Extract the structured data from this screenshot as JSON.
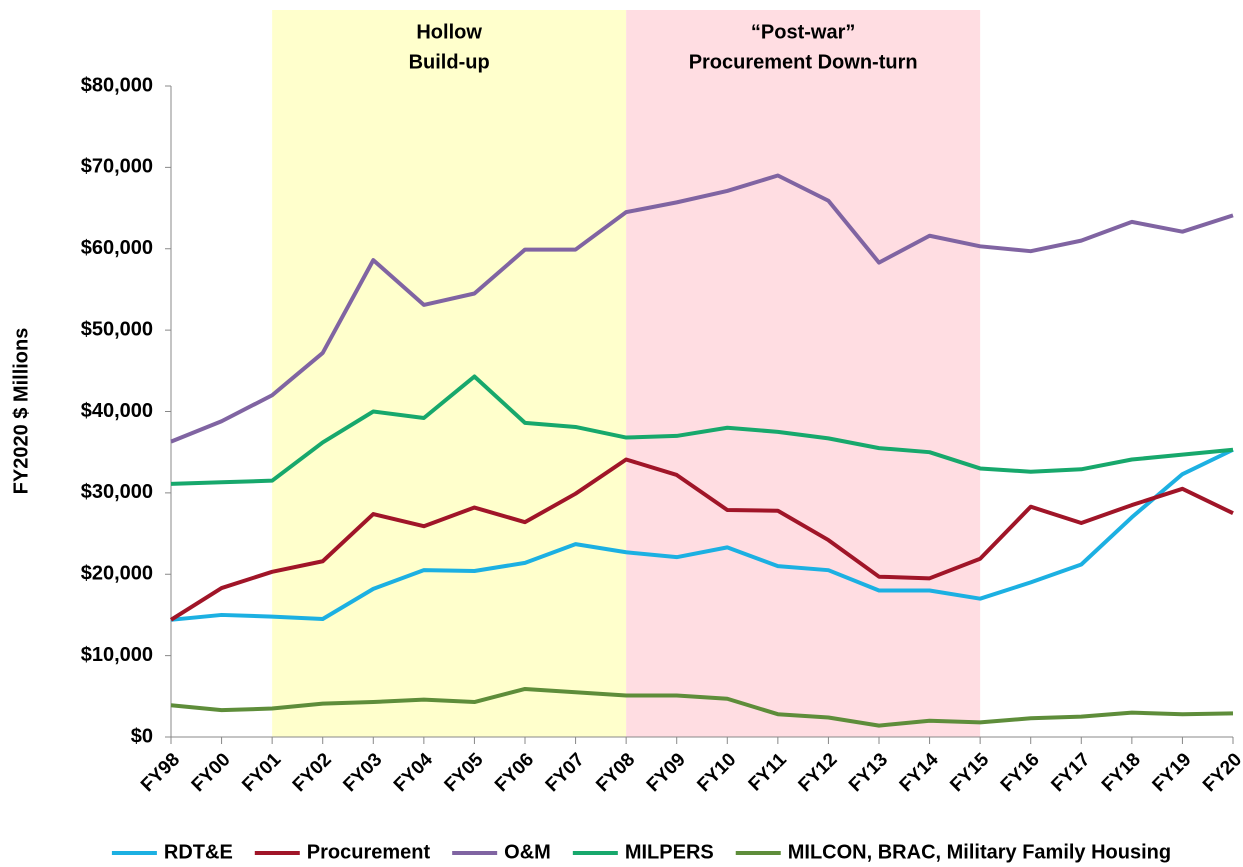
{
  "chart_data": {
    "type": "line",
    "y_label": "FY2020 $ Millions",
    "categories": [
      "FY98",
      "FY00",
      "FY01",
      "FY02",
      "FY03",
      "FY04",
      "FY05",
      "FY06",
      "FY07",
      "FY08",
      "FY09",
      "FY10",
      "FY11",
      "FY12",
      "FY13",
      "FY14",
      "FY15",
      "FY16",
      "FY17",
      "FY18",
      "FY19",
      "FY20"
    ],
    "series": [
      {
        "name": "RDT&E",
        "color": "#1cb0e2",
        "values": [
          14400,
          15000,
          14800,
          14500,
          18200,
          20500,
          20400,
          21400,
          23700,
          22700,
          22100,
          23300,
          21000,
          20500,
          18000,
          18000,
          17000,
          19000,
          21200,
          27000,
          32300,
          35300
        ]
      },
      {
        "name": "Procurement",
        "color": "#a01528",
        "values": [
          14400,
          18300,
          20300,
          21600,
          27400,
          25900,
          28200,
          26400,
          29900,
          34100,
          32200,
          27900,
          27800,
          24200,
          19700,
          19500,
          21900,
          28300,
          26300,
          28500,
          30500,
          27500
        ]
      },
      {
        "name": "O&M",
        "color": "#8064a2",
        "values": [
          36300,
          38800,
          42000,
          47200,
          58600,
          53100,
          54500,
          59900,
          59900,
          64500,
          65700,
          67100,
          69000,
          65900,
          58300,
          61600,
          60300,
          59700,
          61000,
          63300,
          62100,
          64100
        ]
      },
      {
        "name": "MILPERS",
        "color": "#17a86c",
        "values": [
          31100,
          31300,
          31500,
          36200,
          40000,
          39200,
          44300,
          38600,
          38100,
          36800,
          37000,
          38000,
          37500,
          36700,
          35500,
          35000,
          33000,
          32600,
          32900,
          34100,
          34700,
          35300
        ]
      },
      {
        "name": "MILCON, BRAC, Military Family Housing",
        "color": "#5e8d3a",
        "values": [
          3900,
          3300,
          3500,
          4100,
          4300,
          4600,
          4300,
          5900,
          5500,
          5100,
          5100,
          4700,
          2800,
          2400,
          1400,
          2000,
          1800,
          2300,
          2500,
          3000,
          2800,
          2900
        ]
      }
    ],
    "bands": [
      {
        "label": [
          "Hollow",
          "Build-up"
        ],
        "from": "FY01",
        "to": "FY08",
        "color": "#ffffcc"
      },
      {
        "label": [
          "“Post-war”",
          "Procurement Down-turn"
        ],
        "from": "FY08",
        "to": "FY15",
        "color": "#ffdde2"
      }
    ],
    "ylim": [
      0,
      80000
    ],
    "yticks": [
      {
        "value": 0,
        "label": "$0"
      },
      {
        "value": 10000,
        "label": "$10,000"
      },
      {
        "value": 20000,
        "label": "$20,000"
      },
      {
        "value": 30000,
        "label": "$30,000"
      },
      {
        "value": 40000,
        "label": "$40,000"
      },
      {
        "value": 50000,
        "label": "$50,000"
      },
      {
        "value": 60000,
        "label": "$60,000"
      },
      {
        "value": 70000,
        "label": "$70,000"
      },
      {
        "value": 80000,
        "label": "$80,000"
      }
    ],
    "legend": "bottom"
  }
}
